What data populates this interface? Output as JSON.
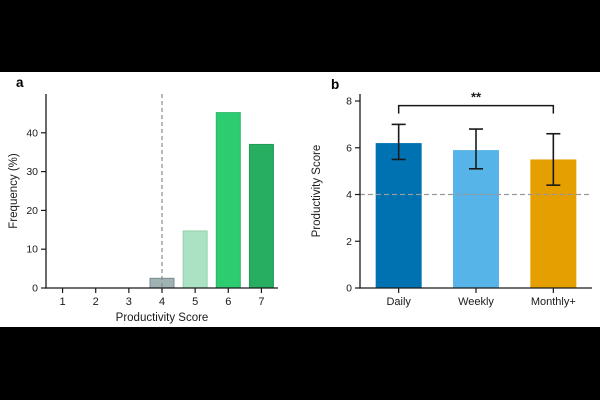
{
  "figure": {
    "letterbox_color": "#000000",
    "background": "#ffffff",
    "panels": [
      {
        "label": "a"
      },
      {
        "label": "b"
      }
    ]
  },
  "chart_data": [
    {
      "type": "bar",
      "panel": "a",
      "title": "",
      "xlabel": "Productivity Score",
      "ylabel": "Frequency (%)",
      "categories": [
        "1",
        "2",
        "3",
        "4",
        "5",
        "6",
        "7"
      ],
      "values": [
        0,
        0,
        0,
        2.5,
        14.7,
        45.2,
        37.0
      ],
      "bar_colors": [
        "#2ECC71",
        "#2ECC71",
        "#2ECC71",
        "#9FB2B4",
        "#ABE2C4",
        "#2ECC71",
        "#27AE60"
      ],
      "bar_edge_colors": [
        null,
        null,
        null,
        "#7B8C90",
        "#93D1AD",
        "#29B765",
        "#23995A"
      ],
      "ylim": [
        0,
        50
      ],
      "yticks": [
        0,
        10,
        20,
        30,
        40
      ],
      "grid": false,
      "legend": null,
      "reference_line": {
        "orientation": "vertical",
        "at_category": "4",
        "style": "dashed",
        "color": "#8A8A8A"
      }
    },
    {
      "type": "bar",
      "panel": "b",
      "title": "",
      "xlabel": "",
      "ylabel": "Productivity Score",
      "categories": [
        "Daily",
        "Weekly",
        "Monthly+"
      ],
      "values": [
        6.2,
        5.9,
        5.5
      ],
      "error_bars": {
        "upper": [
          7.0,
          6.8,
          6.6
        ],
        "lower": [
          5.5,
          5.1,
          4.4
        ]
      },
      "bar_colors": [
        "#0072B2",
        "#56B4E9",
        "#E69F00"
      ],
      "bar_edge_colors": [
        null,
        null,
        null
      ],
      "ylim": [
        0,
        8.3
      ],
      "yticks": [
        0,
        2,
        4,
        6,
        8
      ],
      "grid": false,
      "legend": null,
      "reference_line": {
        "orientation": "horizontal",
        "value": 4,
        "style": "dashed",
        "color": "#999999"
      },
      "significance": {
        "label": "**",
        "from_category": "Daily",
        "to_category": "Monthly+",
        "bracket_y": 7.8
      }
    }
  ]
}
